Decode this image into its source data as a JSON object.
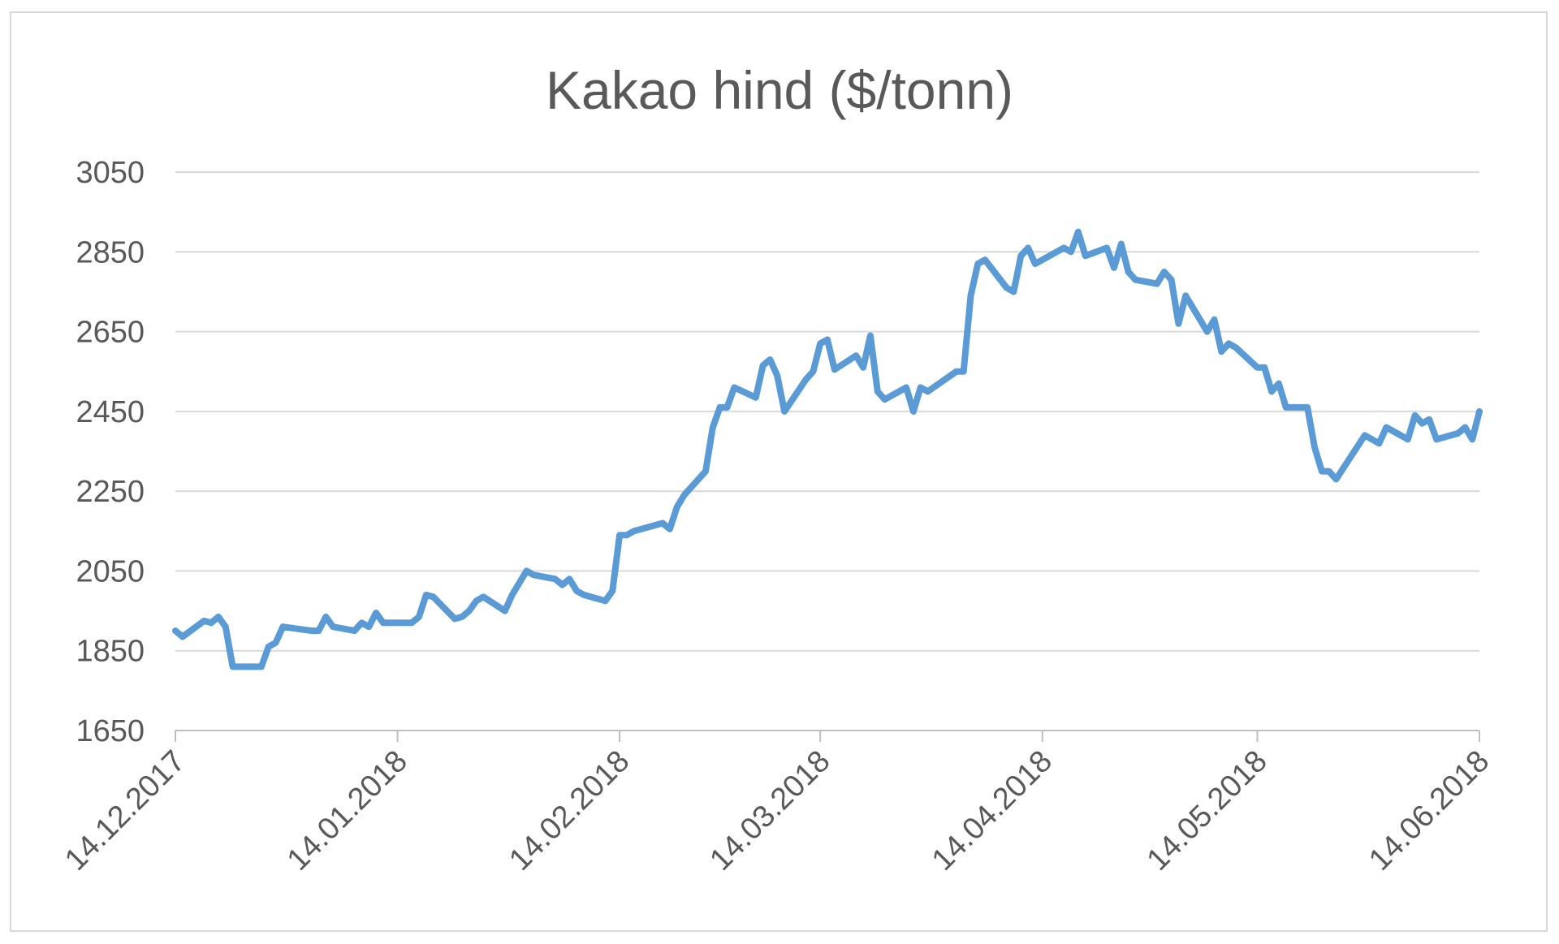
{
  "chart_data": {
    "type": "line",
    "title": "Kakao hind ($/tonn)",
    "xlabel": "",
    "ylabel": "",
    "ylim": [
      1650,
      3050
    ],
    "y_ticks": [
      "3050",
      "2850",
      "2650",
      "2450",
      "2250",
      "2050",
      "1850",
      "1650"
    ],
    "x_ticks": [
      "14.12.2017",
      "14.01.2018",
      "14.02.2018",
      "14.03.2018",
      "14.04.2018",
      "14.05.2018",
      "14.06.2018"
    ],
    "grid": true,
    "legend": "none",
    "line_color": "#5b9bd5",
    "series": [
      {
        "x": [
          "2017-12-14",
          "2017-12-15",
          "2017-12-18",
          "2017-12-19",
          "2017-12-20",
          "2017-12-21",
          "2017-12-22",
          "2017-12-26",
          "2017-12-27",
          "2017-12-28",
          "2017-12-29",
          "2018-01-02",
          "2018-01-03",
          "2018-01-04",
          "2018-01-05",
          "2018-01-08",
          "2018-01-09",
          "2018-01-10",
          "2018-01-11",
          "2018-01-12",
          "2018-01-16",
          "2018-01-17",
          "2018-01-18",
          "2018-01-19",
          "2018-01-22",
          "2018-01-23",
          "2018-01-24",
          "2018-01-25",
          "2018-01-26",
          "2018-01-29",
          "2018-01-30",
          "2018-01-31",
          "2018-02-01",
          "2018-02-02",
          "2018-02-05",
          "2018-02-06",
          "2018-02-07",
          "2018-02-08",
          "2018-02-09",
          "2018-02-12",
          "2018-02-13",
          "2018-02-14",
          "2018-02-15",
          "2018-02-16",
          "2018-02-20",
          "2018-02-21",
          "2018-02-22",
          "2018-02-23",
          "2018-02-26",
          "2018-02-27",
          "2018-02-28",
          "2018-03-01",
          "2018-03-02",
          "2018-03-05",
          "2018-03-06",
          "2018-03-07",
          "2018-03-08",
          "2018-03-09",
          "2018-03-12",
          "2018-03-13",
          "2018-03-14",
          "2018-03-15",
          "2018-03-16",
          "2018-03-19",
          "2018-03-20",
          "2018-03-21",
          "2018-03-22",
          "2018-03-23",
          "2018-03-26",
          "2018-03-27",
          "2018-03-28",
          "2018-03-29",
          "2018-04-02",
          "2018-04-03",
          "2018-04-04",
          "2018-04-05",
          "2018-04-06",
          "2018-04-09",
          "2018-04-10",
          "2018-04-11",
          "2018-04-12",
          "2018-04-13",
          "2018-04-16",
          "2018-04-17",
          "2018-04-18",
          "2018-04-19",
          "2018-04-20",
          "2018-04-23",
          "2018-04-24",
          "2018-04-25",
          "2018-04-26",
          "2018-04-27",
          "2018-04-30",
          "2018-05-01",
          "2018-05-02",
          "2018-05-03",
          "2018-05-04",
          "2018-05-07",
          "2018-05-08",
          "2018-05-09",
          "2018-05-10",
          "2018-05-11",
          "2018-05-14",
          "2018-05-15",
          "2018-05-16",
          "2018-05-17",
          "2018-05-18",
          "2018-05-21",
          "2018-05-22",
          "2018-05-23",
          "2018-05-24",
          "2018-05-25",
          "2018-05-29",
          "2018-05-30",
          "2018-05-31",
          "2018-06-01",
          "2018-06-04",
          "2018-06-05",
          "2018-06-06",
          "2018-06-07",
          "2018-06-08",
          "2018-06-11",
          "2018-06-12",
          "2018-06-13",
          "2018-06-14"
        ],
        "values": [
          1900,
          1885,
          1925,
          1920,
          1935,
          1910,
          1810,
          1810,
          1860,
          1870,
          1910,
          1900,
          1900,
          1935,
          1910,
          1900,
          1920,
          1910,
          1945,
          1920,
          1920,
          1935,
          1990,
          1985,
          1930,
          1935,
          1950,
          1975,
          1985,
          1950,
          1990,
          2020,
          2050,
          2040,
          2030,
          2015,
          2030,
          2000,
          1990,
          1975,
          2000,
          2140,
          2140,
          2150,
          2170,
          2155,
          2210,
          2240,
          2300,
          2410,
          2460,
          2460,
          2510,
          2485,
          2565,
          2580,
          2540,
          2450,
          2530,
          2550,
          2620,
          2630,
          2555,
          2590,
          2560,
          2640,
          2500,
          2480,
          2510,
          2450,
          2510,
          2500,
          2550,
          2550,
          2740,
          2820,
          2830,
          2760,
          2750,
          2840,
          2860,
          2820,
          2850,
          2860,
          2850,
          2900,
          2840,
          2860,
          2810,
          2870,
          2800,
          2780,
          2770,
          2800,
          2780,
          2670,
          2740,
          2650,
          2680,
          2600,
          2620,
          2610,
          2560,
          2560,
          2500,
          2520,
          2460,
          2460,
          2360,
          2300,
          2300,
          2280,
          2390,
          2380,
          2370,
          2410,
          2380,
          2440,
          2420,
          2430,
          2380,
          2395,
          2410,
          2380,
          2450
        ]
      }
    ]
  }
}
